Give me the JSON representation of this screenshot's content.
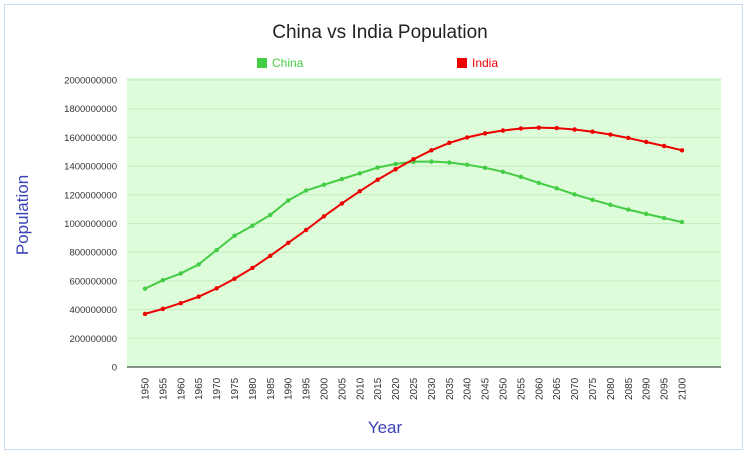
{
  "chart_data": {
    "type": "line",
    "title": "China vs India Population",
    "xlabel": "Year",
    "ylabel": "Population",
    "ylim": [
      0,
      2000000000
    ],
    "y_ticks": [
      "0",
      "200000000",
      "400000000",
      "600000000",
      "800000000",
      "1000000000",
      "1200000000",
      "1400000000",
      "1600000000",
      "1800000000",
      "2000000000"
    ],
    "y_tick_values": [
      0,
      200000000,
      400000000,
      600000000,
      800000000,
      1000000000,
      1200000000,
      1400000000,
      1600000000,
      1800000000,
      2000000000
    ],
    "categories": [
      "1950",
      "1955",
      "1960",
      "1965",
      "1970",
      "1975",
      "1980",
      "1985",
      "1990",
      "1995",
      "2000",
      "2005",
      "2010",
      "2015",
      "2020",
      "2025",
      "2030",
      "2035",
      "2040",
      "2045",
      "2050",
      "2055",
      "2060",
      "2065",
      "2070",
      "2075",
      "2080",
      "2085",
      "2090",
      "2095",
      "2100"
    ],
    "legend_position": "top",
    "plot_background": "#ddfcd9",
    "series": [
      {
        "name": "China",
        "color": "#44cc44",
        "values": [
          546000000,
          605000000,
          652000000,
          715000000,
          815000000,
          915000000,
          985000000,
          1060000000,
          1160000000,
          1230000000,
          1270000000,
          1310000000,
          1350000000,
          1390000000,
          1415000000,
          1430000000,
          1432000000,
          1425000000,
          1410000000,
          1388000000,
          1360000000,
          1325000000,
          1283000000,
          1245000000,
          1203000000,
          1165000000,
          1130000000,
          1097000000,
          1067000000,
          1038000000,
          1010000000
        ]
      },
      {
        "name": "India",
        "color": "#ee0000",
        "values": [
          370000000,
          405000000,
          445000000,
          490000000,
          548000000,
          615000000,
          690000000,
          775000000,
          865000000,
          955000000,
          1050000000,
          1140000000,
          1225000000,
          1305000000,
          1378000000,
          1448000000,
          1510000000,
          1562000000,
          1600000000,
          1628000000,
          1648000000,
          1662000000,
          1668000000,
          1665000000,
          1655000000,
          1640000000,
          1620000000,
          1596000000,
          1568000000,
          1540000000,
          1510000000
        ]
      }
    ]
  }
}
